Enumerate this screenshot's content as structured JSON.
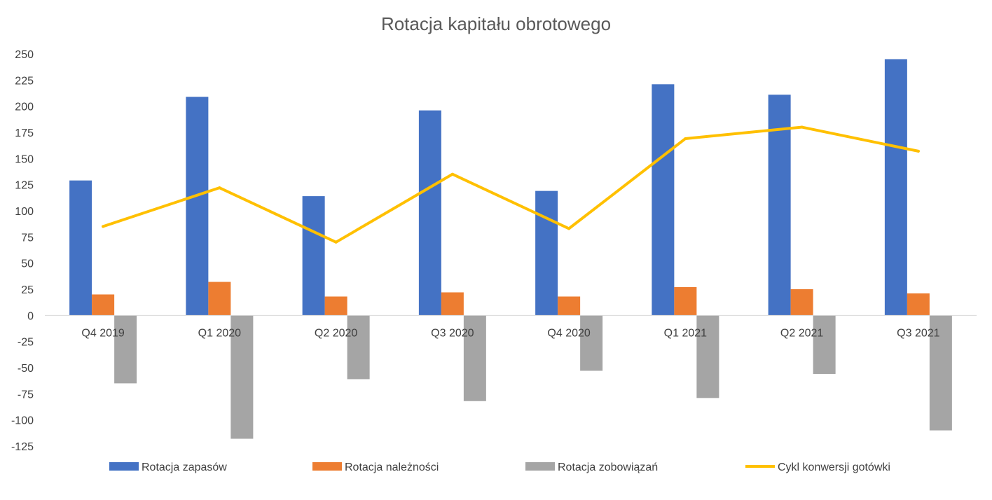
{
  "chart_data": {
    "type": "bar",
    "title": "Rotacja kapitału obrotowego",
    "categories": [
      "Q4 2019",
      "Q1 2020",
      "Q2 2020",
      "Q3 2020",
      "Q4 2020",
      "Q1 2021",
      "Q2 2021",
      "Q3 2021"
    ],
    "ylim": [
      -125,
      250
    ],
    "yticks": [
      250,
      225,
      200,
      175,
      150,
      125,
      100,
      75,
      50,
      25,
      0,
      -25,
      -50,
      -75,
      -100,
      -125
    ],
    "grid": false,
    "legend_position": "bottom",
    "series": [
      {
        "name": "Rotacja zapasów",
        "type": "bar",
        "color": "#4472C4",
        "values": [
          129,
          209,
          114,
          196,
          119,
          221,
          211,
          245
        ]
      },
      {
        "name": "Rotacja należności",
        "type": "bar",
        "color": "#ED7D31",
        "values": [
          20,
          32,
          18,
          22,
          18,
          27,
          25,
          21
        ]
      },
      {
        "name": "Rotacja zobowiązań",
        "type": "bar",
        "color": "#A5A5A5",
        "values": [
          -65,
          -118,
          -61,
          -82,
          -53,
          -79,
          -56,
          -110
        ]
      },
      {
        "name": "Cykl konwersji gotówki",
        "type": "line",
        "color": "#FFC000",
        "values": [
          85,
          122,
          70,
          135,
          83,
          169,
          180,
          157
        ]
      }
    ]
  }
}
